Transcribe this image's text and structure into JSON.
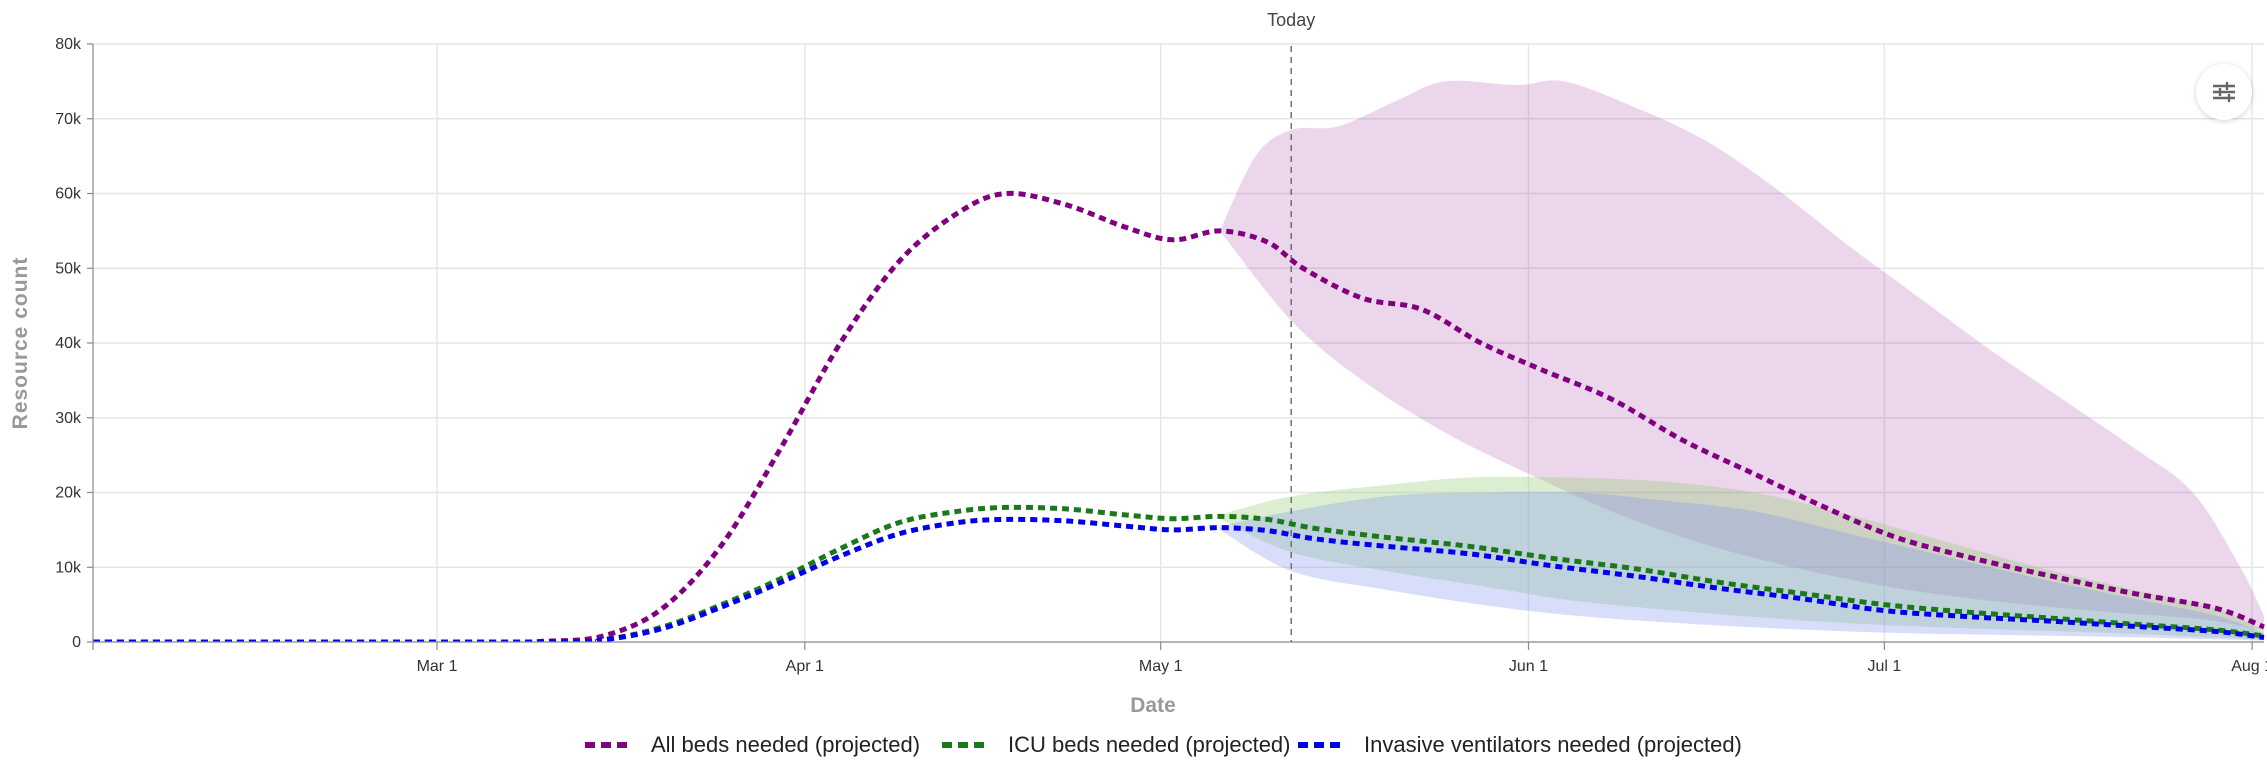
{
  "chart_data": {
    "type": "line",
    "title": "",
    "xlabel": "Date",
    "ylabel": "Resource count",
    "x_range": [
      "2020-02-01",
      "2020-08-02"
    ],
    "ylim": [
      0,
      80000
    ],
    "y_ticks": [
      {
        "value": 0,
        "label": "0"
      },
      {
        "value": 10000,
        "label": "10k"
      },
      {
        "value": 20000,
        "label": "20k"
      },
      {
        "value": 30000,
        "label": "30k"
      },
      {
        "value": 40000,
        "label": "40k"
      },
      {
        "value": 50000,
        "label": "50k"
      },
      {
        "value": 60000,
        "label": "60k"
      },
      {
        "value": 70000,
        "label": "70k"
      },
      {
        "value": 80000,
        "label": "80k"
      }
    ],
    "x_ticks": [
      {
        "date": "2020-03-01",
        "label": "Mar 1"
      },
      {
        "date": "2020-04-01",
        "label": "Apr 1"
      },
      {
        "date": "2020-05-01",
        "label": "May 1"
      },
      {
        "date": "2020-06-01",
        "label": "Jun 1"
      },
      {
        "date": "2020-07-01",
        "label": "Jul 1"
      },
      {
        "date": "2020-08-01",
        "label": "Aug 1"
      }
    ],
    "grid": true,
    "legend_position": "bottom",
    "today": {
      "date": "2020-05-12",
      "label": "Today"
    },
    "series": [
      {
        "name": "All beds needed (projected)",
        "color": "#800080",
        "band_color": "#800080",
        "points": [
          [
            "2020-02-01",
            0
          ],
          [
            "2020-03-05",
            0
          ],
          [
            "2020-03-10",
            100
          ],
          [
            "2020-03-15",
            800
          ],
          [
            "2020-03-20",
            4500
          ],
          [
            "2020-03-25",
            13000
          ],
          [
            "2020-03-30",
            26000
          ],
          [
            "2020-04-04",
            40000
          ],
          [
            "2020-04-09",
            51000
          ],
          [
            "2020-04-14",
            57500
          ],
          [
            "2020-04-18",
            60000
          ],
          [
            "2020-04-23",
            58500
          ],
          [
            "2020-04-28",
            55500
          ],
          [
            "2020-05-02",
            53800
          ],
          [
            "2020-05-06",
            55000
          ],
          [
            "2020-05-10",
            53500
          ],
          [
            "2020-05-13",
            50000
          ],
          [
            "2020-05-18",
            46000
          ],
          [
            "2020-05-23",
            44500
          ],
          [
            "2020-05-28",
            40000
          ],
          [
            "2020-06-02",
            36500
          ],
          [
            "2020-06-08",
            32500
          ],
          [
            "2020-06-14",
            27000
          ],
          [
            "2020-06-20",
            22500
          ],
          [
            "2020-06-26",
            18000
          ],
          [
            "2020-07-02",
            14000
          ],
          [
            "2020-07-09",
            11000
          ],
          [
            "2020-07-16",
            8500
          ],
          [
            "2020-07-22",
            6500
          ],
          [
            "2020-07-29",
            4500
          ],
          [
            "2020-08-02",
            2000
          ]
        ],
        "band": {
          "start": "2020-05-06",
          "upper": [
            [
              "2020-05-06",
              55000
            ],
            [
              "2020-05-09",
              65000
            ],
            [
              "2020-05-12",
              68500
            ],
            [
              "2020-05-16",
              69000
            ],
            [
              "2020-05-21",
              72500
            ],
            [
              "2020-05-25",
              75000
            ],
            [
              "2020-05-31",
              74500
            ],
            [
              "2020-06-04",
              75000
            ],
            [
              "2020-06-10",
              71500
            ],
            [
              "2020-06-16",
              67000
            ],
            [
              "2020-06-22",
              60500
            ],
            [
              "2020-06-28",
              53000
            ],
            [
              "2020-07-04",
              46000
            ],
            [
              "2020-07-10",
              39000
            ],
            [
              "2020-07-16",
              32500
            ],
            [
              "2020-07-22",
              26000
            ],
            [
              "2020-07-27",
              20000
            ],
            [
              "2020-07-31",
              10000
            ],
            [
              "2020-08-02",
              3500
            ]
          ],
          "lower": [
            [
              "2020-05-06",
              55000
            ],
            [
              "2020-05-12",
              43000
            ],
            [
              "2020-05-18",
              35000
            ],
            [
              "2020-05-25",
              28000
            ],
            [
              "2020-06-01",
              22500
            ],
            [
              "2020-06-08",
              17500
            ],
            [
              "2020-06-15",
              13500
            ],
            [
              "2020-06-22",
              10500
            ],
            [
              "2020-07-01",
              7500
            ],
            [
              "2020-07-10",
              5500
            ],
            [
              "2020-07-20",
              4000
            ],
            [
              "2020-07-28",
              3000
            ],
            [
              "2020-08-02",
              1500
            ]
          ]
        }
      },
      {
        "name": "ICU beds needed (projected)",
        "color": "#1a7a1a",
        "band_color": "#90c970",
        "points": [
          [
            "2020-02-01",
            0
          ],
          [
            "2020-03-10",
            0
          ],
          [
            "2020-03-15",
            300
          ],
          [
            "2020-03-20",
            2000
          ],
          [
            "2020-03-25",
            5000
          ],
          [
            "2020-03-30",
            8500
          ],
          [
            "2020-04-04",
            12500
          ],
          [
            "2020-04-09",
            16000
          ],
          [
            "2020-04-14",
            17500
          ],
          [
            "2020-04-18",
            18000
          ],
          [
            "2020-04-23",
            17800
          ],
          [
            "2020-04-28",
            17000
          ],
          [
            "2020-05-02",
            16500
          ],
          [
            "2020-05-06",
            16800
          ],
          [
            "2020-05-10",
            16400
          ],
          [
            "2020-05-14",
            15200
          ],
          [
            "2020-05-20",
            14000
          ],
          [
            "2020-05-27",
            12800
          ],
          [
            "2020-06-03",
            11200
          ],
          [
            "2020-06-10",
            9800
          ],
          [
            "2020-06-17",
            8000
          ],
          [
            "2020-06-24",
            6500
          ],
          [
            "2020-07-01",
            5000
          ],
          [
            "2020-07-08",
            4000
          ],
          [
            "2020-07-15",
            3200
          ],
          [
            "2020-07-22",
            2400
          ],
          [
            "2020-07-29",
            1600
          ],
          [
            "2020-08-02",
            800
          ]
        ],
        "band": {
          "start": "2020-05-06",
          "upper": [
            [
              "2020-05-06",
              17000
            ],
            [
              "2020-05-12",
              19500
            ],
            [
              "2020-05-20",
              21000
            ],
            [
              "2020-05-27",
              22000
            ],
            [
              "2020-06-04",
              22000
            ],
            [
              "2020-06-12",
              21500
            ],
            [
              "2020-06-20",
              20000
            ],
            [
              "2020-06-28",
              17000
            ],
            [
              "2020-07-06",
              13500
            ],
            [
              "2020-07-14",
              10000
            ],
            [
              "2020-07-22",
              7000
            ],
            [
              "2020-07-29",
              4500
            ],
            [
              "2020-08-02",
              1500
            ]
          ],
          "lower": [
            [
              "2020-05-06",
              16500
            ],
            [
              "2020-05-12",
              12000
            ],
            [
              "2020-05-20",
              9500
            ],
            [
              "2020-05-28",
              7500
            ],
            [
              "2020-06-05",
              5500
            ],
            [
              "2020-06-15",
              4000
            ],
            [
              "2020-06-25",
              2800
            ],
            [
              "2020-07-05",
              2000
            ],
            [
              "2020-07-20",
              1200
            ],
            [
              "2020-08-02",
              300
            ]
          ]
        }
      },
      {
        "name": "Invasive ventilators needed (projected)",
        "color": "#0000ee",
        "band_color": "#7f8ff0",
        "points": [
          [
            "2020-02-01",
            0
          ],
          [
            "2020-03-10",
            0
          ],
          [
            "2020-03-15",
            300
          ],
          [
            "2020-03-20",
            1800
          ],
          [
            "2020-03-25",
            4700
          ],
          [
            "2020-03-30",
            8000
          ],
          [
            "2020-04-04",
            11500
          ],
          [
            "2020-04-09",
            14500
          ],
          [
            "2020-04-14",
            16000
          ],
          [
            "2020-04-18",
            16400
          ],
          [
            "2020-04-23",
            16200
          ],
          [
            "2020-04-28",
            15500
          ],
          [
            "2020-05-02",
            15000
          ],
          [
            "2020-05-06",
            15300
          ],
          [
            "2020-05-10",
            14900
          ],
          [
            "2020-05-14",
            13800
          ],
          [
            "2020-05-20",
            12800
          ],
          [
            "2020-05-27",
            11800
          ],
          [
            "2020-06-03",
            10200
          ],
          [
            "2020-06-10",
            8800
          ],
          [
            "2020-06-17",
            7200
          ],
          [
            "2020-06-24",
            5800
          ],
          [
            "2020-07-01",
            4200
          ],
          [
            "2020-07-08",
            3400
          ],
          [
            "2020-07-15",
            2800
          ],
          [
            "2020-07-22",
            2100
          ],
          [
            "2020-07-29",
            1400
          ],
          [
            "2020-08-02",
            600
          ]
        ],
        "band": {
          "start": "2020-05-06",
          "upper": [
            [
              "2020-05-06",
              15500
            ],
            [
              "2020-05-12",
              17500
            ],
            [
              "2020-05-20",
              19500
            ],
            [
              "2020-05-28",
              20000
            ],
            [
              "2020-06-05",
              20000
            ],
            [
              "2020-06-12",
              19000
            ],
            [
              "2020-06-20",
              17500
            ],
            [
              "2020-06-28",
              14500
            ],
            [
              "2020-07-06",
              11500
            ],
            [
              "2020-07-14",
              8500
            ],
            [
              "2020-07-22",
              5800
            ],
            [
              "2020-07-29",
              3500
            ],
            [
              "2020-08-02",
              1200
            ]
          ],
          "lower": [
            [
              "2020-05-06",
              15000
            ],
            [
              "2020-05-12",
              9500
            ],
            [
              "2020-05-20",
              7000
            ],
            [
              "2020-05-28",
              5000
            ],
            [
              "2020-06-05",
              3500
            ],
            [
              "2020-06-15",
              2400
            ],
            [
              "2020-06-25",
              1600
            ],
            [
              "2020-07-05",
              1100
            ],
            [
              "2020-07-20",
              700
            ],
            [
              "2020-08-02",
              200
            ]
          ]
        }
      }
    ]
  },
  "controls": {
    "settings_icon": "sliders-icon"
  }
}
